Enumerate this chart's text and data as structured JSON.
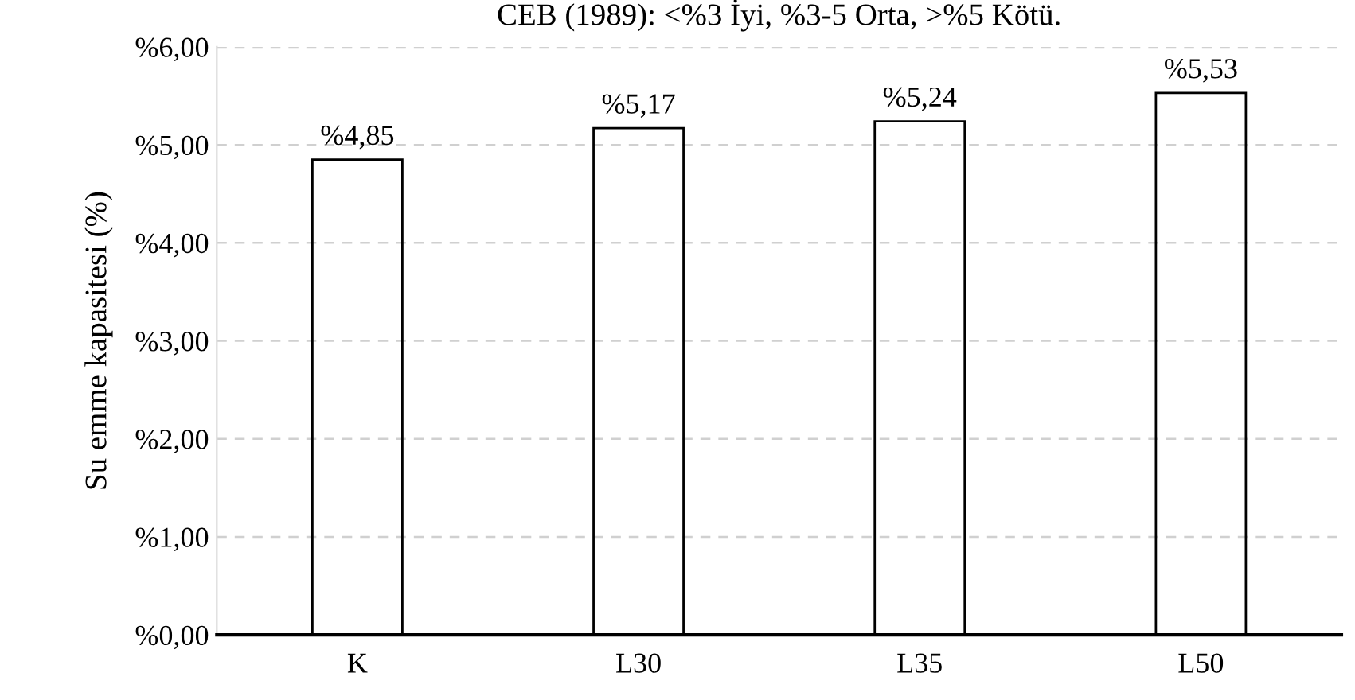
{
  "chart_data": {
    "type": "bar",
    "title": "CEB (1989): <%3 İyi, %3-5 Orta, >%5 Kötü.",
    "ylabel": "Su emme kapasitesi (%)",
    "categories": [
      "K",
      "L30",
      "L35",
      "L50"
    ],
    "values": [
      4.85,
      5.17,
      5.24,
      5.53
    ],
    "value_labels": [
      "%4,85",
      "%5,17",
      "%5,24",
      "%5,53"
    ],
    "color": "#000000",
    "ylim": [
      0,
      6
    ],
    "yticks": [
      {
        "value": 0,
        "label": "%0,00"
      },
      {
        "value": 1,
        "label": "%1,00"
      },
      {
        "value": 2,
        "label": "%2,00"
      },
      {
        "value": 3,
        "label": "%3,00"
      },
      {
        "value": 4,
        "label": "%4,00"
      },
      {
        "value": 5,
        "label": "%5,00"
      },
      {
        "value": 6,
        "label": "%6,00"
      }
    ],
    "grid": "y",
    "legend": false
  }
}
